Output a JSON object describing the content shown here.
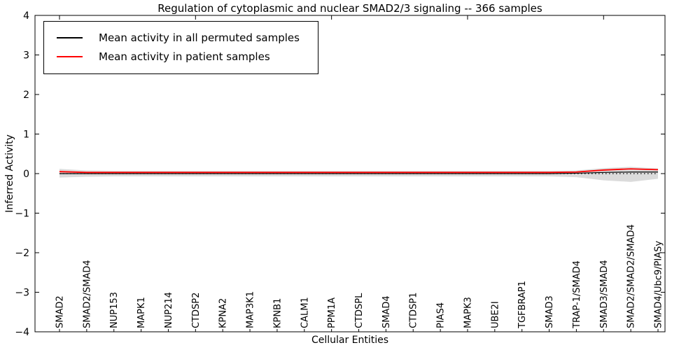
{
  "figure": {
    "title": "Regulation of cytoplasmic and nuclear SMAD2/3 signaling -- 366 samples"
  },
  "legend": {
    "items": [
      {
        "label": "Mean activity in all permuted samples",
        "color": "#000000"
      },
      {
        "label": "Mean activity in patient samples",
        "color": "#ff0000"
      }
    ]
  },
  "chart_data": {
    "type": "line",
    "title": "Regulation of cytoplasmic and nuclear SMAD2/3 signaling -- 366 samples",
    "xlabel": "Cellular Entities",
    "ylabel": "Inferred Activity",
    "ylim": [
      -4,
      4
    ],
    "yticks": [
      -4,
      -3,
      -2,
      -1,
      0,
      1,
      2,
      3,
      4
    ],
    "grid": false,
    "legend_position": "upper left",
    "categories": [
      "SMAD2",
      "SMAD2/SMAD4",
      "NUP153",
      "MAPK1",
      "NUP214",
      "CTDSP2",
      "KPNA2",
      "MAP3K1",
      "KPNB1",
      "CALM1",
      "PPM1A",
      "CTDSPL",
      "SMAD4",
      "CTDSP1",
      "PIAS4",
      "MAPK3",
      "UBE2I",
      "TGFBRAP1",
      "SMAD3",
      "TRAP-1/SMAD4",
      "SMAD3/SMAD4",
      "SMAD2/SMAD2/SMAD4",
      "SMAD4/Ubc9/PIASy"
    ],
    "series": [
      {
        "name": "Mean activity in all permuted samples",
        "color": "#000000",
        "style": "solid",
        "width": 1.2,
        "values": [
          0,
          0,
          0,
          0,
          0,
          0,
          0,
          0,
          0,
          0,
          0,
          0,
          0,
          0,
          0,
          0,
          0,
          0,
          0,
          0.01,
          0.03,
          0.04,
          0.04
        ]
      },
      {
        "name": "Mean activity in patient samples",
        "color": "#ff0000",
        "style": "solid",
        "width": 1.8,
        "values": [
          0.05,
          0.03,
          0.03,
          0.03,
          0.03,
          0.03,
          0.03,
          0.03,
          0.03,
          0.03,
          0.03,
          0.03,
          0.03,
          0.03,
          0.03,
          0.03,
          0.03,
          0.03,
          0.03,
          0.04,
          0.09,
          0.12,
          0.1
        ]
      }
    ],
    "refline": {
      "y": 0,
      "style": "dotted",
      "color": "#000000"
    },
    "band": {
      "name": "permuted-samples-spread",
      "color": "#999999",
      "opacity": 0.35,
      "upper": [
        0.12,
        0.08,
        0.07,
        0.07,
        0.07,
        0.07,
        0.07,
        0.07,
        0.07,
        0.07,
        0.07,
        0.07,
        0.07,
        0.07,
        0.07,
        0.07,
        0.07,
        0.07,
        0.07,
        0.08,
        0.14,
        0.17,
        0.13
      ],
      "lower": [
        -0.1,
        -0.08,
        -0.07,
        -0.07,
        -0.07,
        -0.07,
        -0.07,
        -0.07,
        -0.07,
        -0.07,
        -0.07,
        -0.07,
        -0.07,
        -0.07,
        -0.07,
        -0.07,
        -0.07,
        -0.07,
        -0.07,
        -0.09,
        -0.17,
        -0.21,
        -0.13
      ]
    }
  }
}
